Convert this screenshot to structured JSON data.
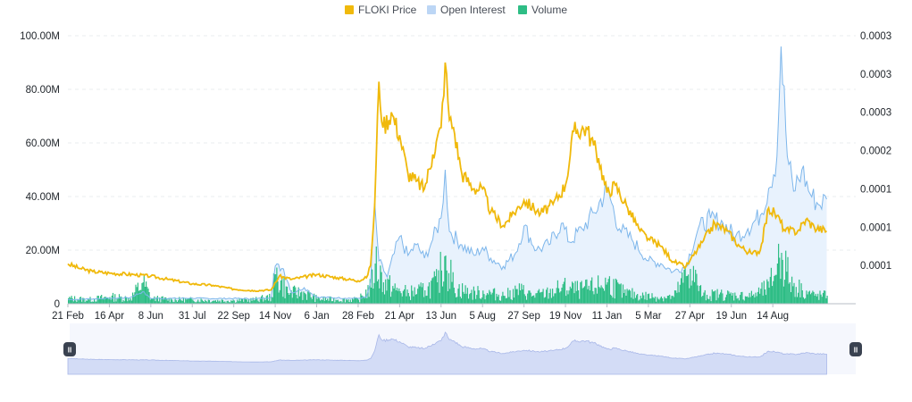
{
  "colors": {
    "price": "#f0b90b",
    "open_interest": "#7db6eb",
    "open_interest_fill": "#e8f2fd",
    "volume": "#2ebd85",
    "navigator_fill": "#d3dcf6",
    "navigator_line": "#a8b7e8",
    "handle": "#3a4250"
  },
  "legend": [
    {
      "key": "price",
      "label": "FLOKI Price",
      "color": "#f0b90b"
    },
    {
      "key": "open_interest",
      "label": "Open Interest",
      "color": "#bcd6f5"
    },
    {
      "key": "volume",
      "label": "Volume",
      "color": "#2ebd85"
    }
  ],
  "navigator": {
    "handle_left_icon": "pause-icon",
    "handle_right_icon": "pause-icon",
    "handle_glyph": "II"
  },
  "chart_data": {
    "type": "line",
    "x_tick_labels": [
      "21 Feb",
      "16 Apr",
      "8 Jun",
      "31 Jul",
      "22 Sep",
      "14 Nov",
      "6 Jan",
      "28 Feb",
      "21 Apr",
      "13 Jun",
      "5 Aug",
      "27 Sep",
      "19 Nov",
      "11 Jan",
      "5 Mar",
      "27 Apr",
      "19 Jun",
      "14 Aug"
    ],
    "x_range": [
      0,
      19
    ],
    "y_left": {
      "tick_labels": [
        "0",
        "20.00M",
        "40.00M",
        "60.00M",
        "80.00M",
        "100.00M"
      ],
      "ticks": [
        0,
        20000000,
        40000000,
        60000000,
        80000000,
        100000000
      ],
      "range": [
        0,
        100000000
      ]
    },
    "y_right": {
      "tick_labels": [
        "0.0001",
        "0.0001",
        "0.0001",
        "0.0002",
        "0.0003",
        "0.0003",
        "0.0003"
      ],
      "ticks": [
        5e-05,
        0.0001,
        0.00015,
        0.0002,
        0.00025,
        0.0003,
        0.00035
      ],
      "range": [
        0,
        0.00035
      ]
    },
    "grid": true,
    "legend_position": "top-center",
    "series": [
      {
        "name": "FLOKI Price",
        "axis": "right",
        "points": [
          [
            0,
            5.2e-05
          ],
          [
            0.3,
            4.6e-05
          ],
          [
            0.6,
            4.2e-05
          ],
          [
            1.0,
            4e-05
          ],
          [
            1.6,
            3.8e-05
          ],
          [
            2.0,
            3.6e-05
          ],
          [
            2.4,
            3.2e-05
          ],
          [
            3.0,
            2.6e-05
          ],
          [
            3.5,
            2.4e-05
          ],
          [
            4.0,
            1.9e-05
          ],
          [
            4.5,
            1.7e-05
          ],
          [
            4.9,
            1.8e-05
          ],
          [
            5.1,
            3.6e-05
          ],
          [
            5.4,
            3.2e-05
          ],
          [
            6.0,
            3.8e-05
          ],
          [
            6.5,
            3.4e-05
          ],
          [
            7.0,
            3e-05
          ],
          [
            7.2,
            3.4e-05
          ],
          [
            7.3,
            5e-05
          ],
          [
            7.4,
            0.00013
          ],
          [
            7.5,
            0.00029
          ],
          [
            7.6,
            0.00023
          ],
          [
            7.8,
            0.00025
          ],
          [
            8.0,
            0.00022
          ],
          [
            8.2,
            0.00017
          ],
          [
            8.4,
            0.00016
          ],
          [
            8.6,
            0.00015
          ],
          [
            8.8,
            0.000195
          ],
          [
            9.0,
            0.00023
          ],
          [
            9.1,
            0.000315
          ],
          [
            9.2,
            0.00024
          ],
          [
            9.3,
            0.00023
          ],
          [
            9.5,
            0.00017
          ],
          [
            9.8,
            0.00015
          ],
          [
            10.0,
            0.00015
          ],
          [
            10.2,
            0.00012
          ],
          [
            10.5,
            0.000102
          ],
          [
            10.7,
            0.000115
          ],
          [
            11.0,
            0.000135
          ],
          [
            11.4,
            0.000118
          ],
          [
            11.7,
            0.00013
          ],
          [
            12.0,
            0.000155
          ],
          [
            12.2,
            0.000225
          ],
          [
            12.5,
            0.00023
          ],
          [
            12.8,
            0.00019
          ],
          [
            13.0,
            0.000145
          ],
          [
            13.2,
            0.000155
          ],
          [
            13.5,
            0.000125
          ],
          [
            13.8,
            9.5e-05
          ],
          [
            14.0,
            8.5e-05
          ],
          [
            14.3,
            7.5e-05
          ],
          [
            14.6,
            5.5e-05
          ],
          [
            14.9,
            4.8e-05
          ],
          [
            15.0,
            5.6e-05
          ],
          [
            15.3,
            8e-05
          ],
          [
            15.6,
            0.000105
          ],
          [
            15.9,
            9.5e-05
          ],
          [
            16.2,
            7.5e-05
          ],
          [
            16.5,
            6.5e-05
          ],
          [
            16.7,
            7e-05
          ],
          [
            16.9,
            0.000125
          ],
          [
            17.1,
            0.000115
          ],
          [
            17.3,
            9.5e-05
          ],
          [
            17.6,
            9.5e-05
          ],
          [
            17.8,
            0.00011
          ],
          [
            18.0,
            0.0001
          ],
          [
            18.3,
            9.5e-05
          ]
        ]
      },
      {
        "name": "Open Interest",
        "axis": "left",
        "points": [
          [
            0,
            1500000
          ],
          [
            0.5,
            1800000
          ],
          [
            1.0,
            2000000
          ],
          [
            1.5,
            2300000
          ],
          [
            1.8,
            4500000
          ],
          [
            2.0,
            2000000
          ],
          [
            2.5,
            2000000
          ],
          [
            3.0,
            2100000
          ],
          [
            3.5,
            1900000
          ],
          [
            4.0,
            2000000
          ],
          [
            4.5,
            1800000
          ],
          [
            4.9,
            2400000
          ],
          [
            5.0,
            14000000
          ],
          [
            5.2,
            13000000
          ],
          [
            5.4,
            4000000
          ],
          [
            5.7,
            6000000
          ],
          [
            6.0,
            2500000
          ],
          [
            6.5,
            2200000
          ],
          [
            7.0,
            2000000
          ],
          [
            7.2,
            2500000
          ],
          [
            7.3,
            8000000
          ],
          [
            7.4,
            38000000
          ],
          [
            7.5,
            16000000
          ],
          [
            7.7,
            10000000
          ],
          [
            8.0,
            25000000
          ],
          [
            8.2,
            18000000
          ],
          [
            8.4,
            22000000
          ],
          [
            8.6,
            17000000
          ],
          [
            8.8,
            24000000
          ],
          [
            9.0,
            32000000
          ],
          [
            9.1,
            50000000
          ],
          [
            9.2,
            27000000
          ],
          [
            9.5,
            22000000
          ],
          [
            9.8,
            18000000
          ],
          [
            10.0,
            21000000
          ],
          [
            10.2,
            17000000
          ],
          [
            10.5,
            14000000
          ],
          [
            10.8,
            19000000
          ],
          [
            11.0,
            29000000
          ],
          [
            11.3,
            20000000
          ],
          [
            11.6,
            22000000
          ],
          [
            11.9,
            30000000
          ],
          [
            12.1,
            23000000
          ],
          [
            12.4,
            28000000
          ],
          [
            12.7,
            34000000
          ],
          [
            13.0,
            43000000
          ],
          [
            13.3,
            28000000
          ],
          [
            13.6,
            24000000
          ],
          [
            14.0,
            16000000
          ],
          [
            14.3,
            15000000
          ],
          [
            14.6,
            12000000
          ],
          [
            14.9,
            14000000
          ],
          [
            15.2,
            28000000
          ],
          [
            15.5,
            32000000
          ],
          [
            15.8,
            30000000
          ],
          [
            16.1,
            25000000
          ],
          [
            16.4,
            28000000
          ],
          [
            16.7,
            33000000
          ],
          [
            16.9,
            43000000
          ],
          [
            17.1,
            55000000
          ],
          [
            17.2,
            96000000
          ],
          [
            17.35,
            55000000
          ],
          [
            17.5,
            42000000
          ],
          [
            17.7,
            50000000
          ],
          [
            17.9,
            41000000
          ],
          [
            18.1,
            37000000
          ],
          [
            18.3,
            39000000
          ]
        ]
      },
      {
        "name": "Volume",
        "axis": "left",
        "type": "bar",
        "points": [
          [
            0,
            2000000
          ],
          [
            0.5,
            1500000
          ],
          [
            1.0,
            2500000
          ],
          [
            1.5,
            2000000
          ],
          [
            1.8,
            8000000
          ],
          [
            2.0,
            2000000
          ],
          [
            2.5,
            1500000
          ],
          [
            3.0,
            1500000
          ],
          [
            3.5,
            1200000
          ],
          [
            4.0,
            1200000
          ],
          [
            4.5,
            1500000
          ],
          [
            4.9,
            2500000
          ],
          [
            5.0,
            11000000
          ],
          [
            5.3,
            4000000
          ],
          [
            5.7,
            4000000
          ],
          [
            6.0,
            1800000
          ],
          [
            6.5,
            1500000
          ],
          [
            7.0,
            1500000
          ],
          [
            7.3,
            6000000
          ],
          [
            7.4,
            15000000
          ],
          [
            7.6,
            8000000
          ],
          [
            7.9,
            5000000
          ],
          [
            8.2,
            4000000
          ],
          [
            8.6,
            5000000
          ],
          [
            8.9,
            8000000
          ],
          [
            9.1,
            18000000
          ],
          [
            9.3,
            6000000
          ],
          [
            9.7,
            4000000
          ],
          [
            10.1,
            4000000
          ],
          [
            10.5,
            3000000
          ],
          [
            10.9,
            5000000
          ],
          [
            11.2,
            3000000
          ],
          [
            11.6,
            4000000
          ],
          [
            11.9,
            6000000
          ],
          [
            12.3,
            5000000
          ],
          [
            12.7,
            6000000
          ],
          [
            13.0,
            8000000
          ],
          [
            13.4,
            4000000
          ],
          [
            13.8,
            3000000
          ],
          [
            14.2,
            2500000
          ],
          [
            14.6,
            2500000
          ],
          [
            15.0,
            13000000
          ],
          [
            15.3,
            3000000
          ],
          [
            15.7,
            3500000
          ],
          [
            16.1,
            3000000
          ],
          [
            16.5,
            3000000
          ],
          [
            16.9,
            6000000
          ],
          [
            17.1,
            15000000
          ],
          [
            17.2,
            19000000
          ],
          [
            17.4,
            8000000
          ],
          [
            17.7,
            5000000
          ],
          [
            18.0,
            3000000
          ],
          [
            18.3,
            3000000
          ]
        ]
      }
    ]
  }
}
